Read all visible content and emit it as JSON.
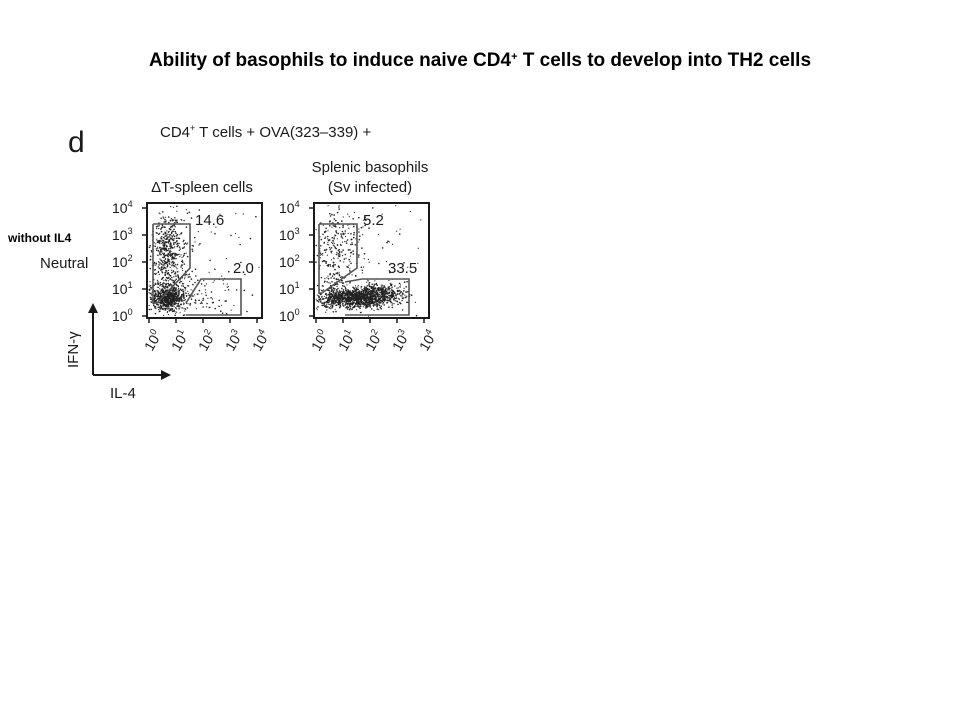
{
  "slide": {
    "title_main": "Ability of basophils to induce naive CD4",
    "title_sup": "+",
    "title_tail": " T cells to develop into TH2 cells",
    "side_label": "without IL4"
  },
  "figure": {
    "panel_letter": "d",
    "header_main": "CD4",
    "header_sup": "+",
    "header_tail": " T cells + OVA(323–339) +",
    "row_label": "Neutral",
    "x_axis_label": "IL-4",
    "y_axis_label": "IFN-γ",
    "decade_base": "10",
    "decade_exponents": [
      "0",
      "1",
      "2",
      "3",
      "4"
    ],
    "panels": [
      {
        "title_lines": [
          "ΔT-spleen cells"
        ],
        "gate_upper_value": "14.6",
        "gate_lower_value": "2.0"
      },
      {
        "title_lines": [
          "Splenic basophils",
          "(Sv infected)"
        ],
        "gate_upper_value": "5.2",
        "gate_lower_value": "33.5"
      }
    ]
  },
  "colors": {
    "ink": "#1a1a1a",
    "gate": "#555555",
    "dots": "#222222"
  }
}
